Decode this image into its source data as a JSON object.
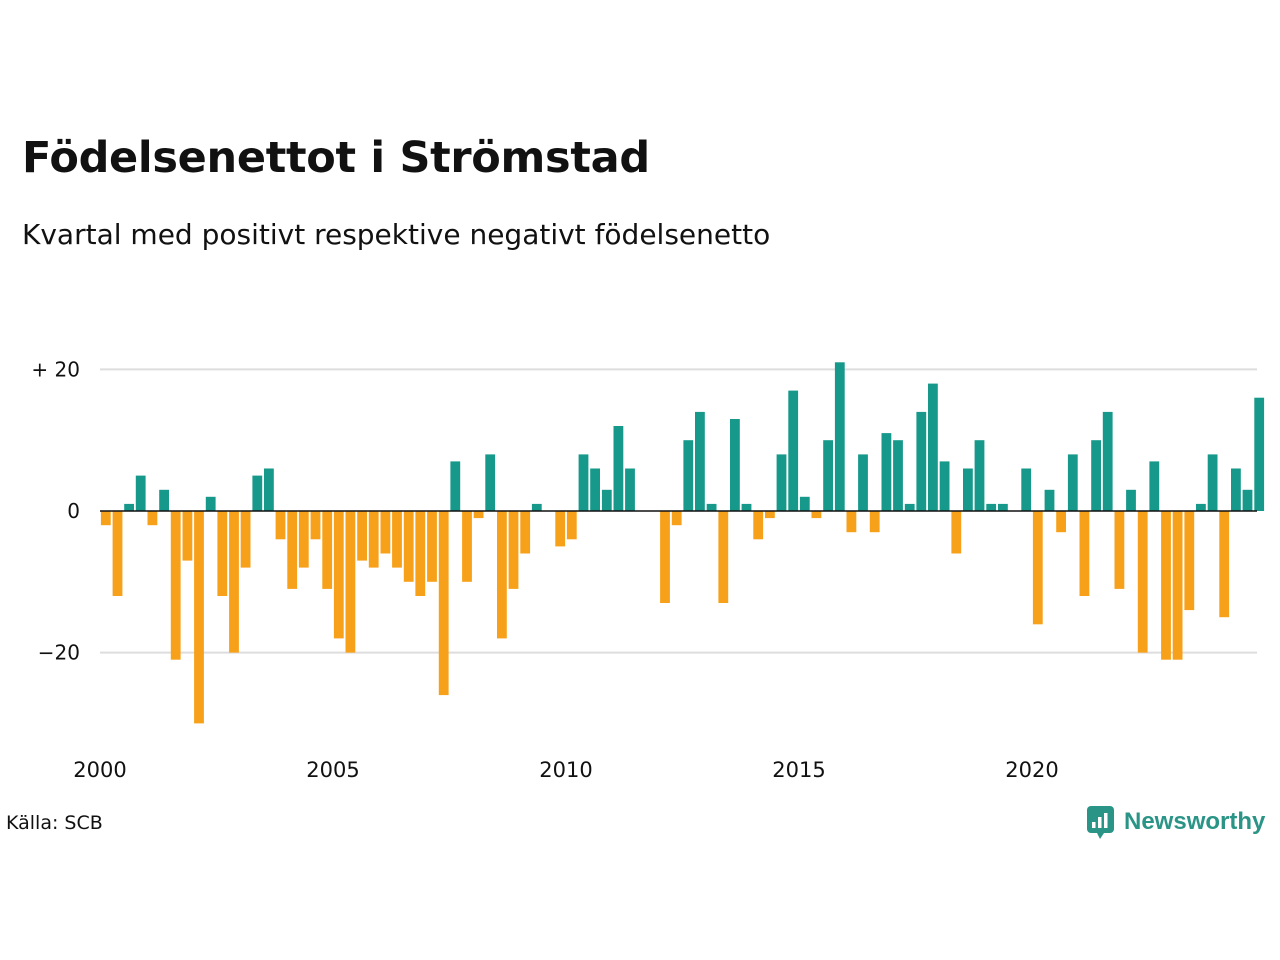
{
  "header": {
    "title": "Födelsenettot i Strömstad",
    "subtitle": "Kvartal med positivt respektive negativt födelsenetto"
  },
  "footer": {
    "source": "Källa: SCB",
    "brand": "Newsworthy"
  },
  "icons": {
    "brand_logo": "newsworthy-logo-icon"
  },
  "colors": {
    "positive": "#16998a",
    "negative": "#f7a11a",
    "grid": "#dddddd",
    "brand": "#2a9486"
  },
  "chart_data": {
    "type": "bar",
    "title": "Födelsenettot i Strömstad",
    "subtitle": "Kvartal med positivt respektive negativt födelsenetto",
    "x_start": 2000,
    "x_step": 0.25,
    "x_tick_values": [
      2000,
      2005,
      2010,
      2015,
      2020
    ],
    "x_tick_labels": [
      "2000",
      "2005",
      "2010",
      "2015",
      "2020"
    ],
    "y_tick_values": [
      20,
      0,
      -20
    ],
    "y_tick_labels": [
      "+ 20",
      "0",
      "−20"
    ],
    "ylim": [
      -30,
      21
    ],
    "grid": true,
    "legend": "none",
    "values": [
      -2,
      -12,
      1,
      5,
      -2,
      3,
      -21,
      -7,
      -30,
      2,
      -12,
      -20,
      -8,
      5,
      6,
      -4,
      -11,
      -8,
      -4,
      -11,
      -18,
      -20,
      -7,
      -8,
      -6,
      -8,
      -10,
      -12,
      -10,
      -26,
      7,
      -10,
      -1,
      8,
      -18,
      -11,
      -6,
      1,
      0,
      -5,
      -4,
      8,
      6,
      3,
      12,
      6,
      0,
      0,
      -13,
      -2,
      10,
      14,
      1,
      -13,
      13,
      1,
      -4,
      -1,
      8,
      17,
      2,
      -1,
      10,
      21,
      -3,
      8,
      -3,
      11,
      10,
      1,
      14,
      18,
      7,
      -6,
      6,
      10,
      1,
      1,
      0,
      6,
      -16,
      3,
      -3,
      8,
      -12,
      10,
      14,
      -11,
      3,
      -20,
      7,
      -21,
      -21,
      -14,
      1,
      8,
      -15,
      6,
      3,
      16
    ]
  }
}
